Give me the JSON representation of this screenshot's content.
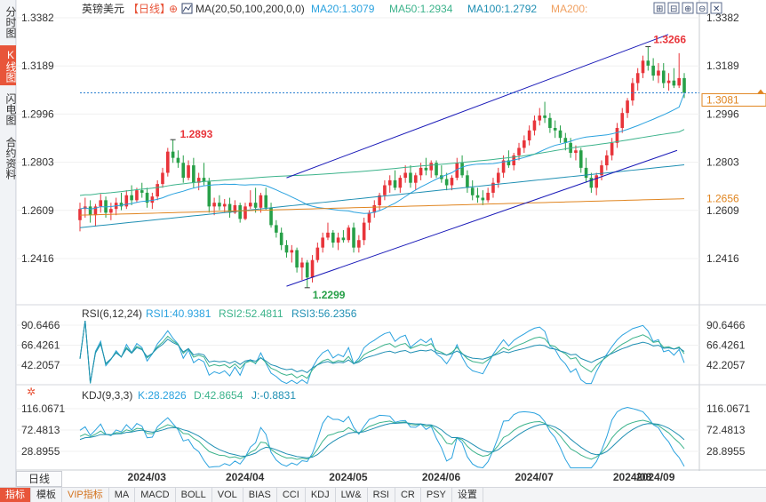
{
  "left_tabs": [
    "分时图",
    "K线图",
    "闪电图",
    "合约资料"
  ],
  "left_tab_active": 1,
  "header": {
    "symbol": "英镑美元",
    "period": "【日线】",
    "ma_label": "MA(20,50,100,200,0,0)",
    "ma20": "MA20:1.3079",
    "ma50": "MA50:1.2934",
    "ma100": "MA100:1.2792",
    "ma200": "MA200:"
  },
  "toolbar_icons": [
    "expand-icon",
    "shrink-icon",
    "zoom-in-icon",
    "zoom-out-icon",
    "close-icon"
  ],
  "price_axis": {
    "ticks": [
      "1.3382",
      "1.3189",
      "1.2996",
      "1.2803",
      "1.2609",
      "1.2416"
    ],
    "current_price": "1.3081",
    "ma200_price": "1.2656"
  },
  "annotations": {
    "high": "1.3266",
    "low": "1.2299",
    "local_high": "1.2893"
  },
  "rsi": {
    "title": "RSI(6,12,24)",
    "rsi1": "RSI1:40.9381",
    "rsi2": "RSI2:52.4811",
    "rsi3": "RSI3:56.2356",
    "ticks": [
      "90.6466",
      "66.4261",
      "42.2057"
    ]
  },
  "kdj": {
    "title": "KDJ(9,3,3)",
    "k": "K:28.2826",
    "d": "D:42.8654",
    "j": "J:-0.8831",
    "ticks": [
      "116.0671",
      "72.4813",
      "28.8955"
    ]
  },
  "x_ticks": [
    "2024/03",
    "2024/04",
    "2024/05",
    "2024/06",
    "2024/07",
    "2024/08",
    "2024/09"
  ],
  "period_button": "日线",
  "bottom_tabs": [
    "指标",
    "模板",
    "VIP指标",
    "MA",
    "MACD",
    "BOLL",
    "VOL",
    "BIAS",
    "CCI",
    "KDJ",
    "LW&",
    "RSI",
    "CR",
    "PSY",
    "设置"
  ],
  "bottom_tab_active": 0,
  "colors": {
    "up": "#e8343a",
    "down": "#27a048",
    "ma20": "#2aa2df",
    "ma50": "#3cb38b",
    "ma100": "#1f8fb3",
    "ma200": "#e08520",
    "channel": "#1a1ab8",
    "current_line": "#2a7fd0",
    "ma200_label": "#e08520"
  },
  "chart_data": {
    "type": "candlestick",
    "title": "英镑美元 【日线】",
    "x_range": [
      "2024-02",
      "2024-09"
    ],
    "y_range": [
      1.2299,
      1.3266
    ],
    "candles": [
      {
        "o": 1.257,
        "h": 1.264,
        "l": 1.2525,
        "c": 1.2615
      },
      {
        "o": 1.2615,
        "h": 1.266,
        "l": 1.258,
        "c": 1.2625
      },
      {
        "o": 1.2625,
        "h": 1.265,
        "l": 1.256,
        "c": 1.259
      },
      {
        "o": 1.259,
        "h": 1.2635,
        "l": 1.2545,
        "c": 1.2625
      },
      {
        "o": 1.2625,
        "h": 1.2675,
        "l": 1.26,
        "c": 1.265
      },
      {
        "o": 1.265,
        "h": 1.2665,
        "l": 1.258,
        "c": 1.26
      },
      {
        "o": 1.26,
        "h": 1.264,
        "l": 1.257,
        "c": 1.2615
      },
      {
        "o": 1.2615,
        "h": 1.266,
        "l": 1.259,
        "c": 1.264
      },
      {
        "o": 1.264,
        "h": 1.268,
        "l": 1.261,
        "c": 1.2625
      },
      {
        "o": 1.2625,
        "h": 1.269,
        "l": 1.2615,
        "c": 1.267
      },
      {
        "o": 1.267,
        "h": 1.271,
        "l": 1.263,
        "c": 1.265
      },
      {
        "o": 1.265,
        "h": 1.27,
        "l": 1.264,
        "c": 1.269
      },
      {
        "o": 1.269,
        "h": 1.272,
        "l": 1.266,
        "c": 1.268
      },
      {
        "o": 1.268,
        "h": 1.27,
        "l": 1.262,
        "c": 1.264
      },
      {
        "o": 1.264,
        "h": 1.268,
        "l": 1.2615,
        "c": 1.2665
      },
      {
        "o": 1.2665,
        "h": 1.273,
        "l": 1.265,
        "c": 1.2715
      },
      {
        "o": 1.2715,
        "h": 1.278,
        "l": 1.27,
        "c": 1.276
      },
      {
        "o": 1.276,
        "h": 1.286,
        "l": 1.2745,
        "c": 1.2845
      },
      {
        "o": 1.2845,
        "h": 1.2893,
        "l": 1.28,
        "c": 1.282
      },
      {
        "o": 1.282,
        "h": 1.285,
        "l": 1.278,
        "c": 1.28
      },
      {
        "o": 1.28,
        "h": 1.283,
        "l": 1.272,
        "c": 1.274
      },
      {
        "o": 1.274,
        "h": 1.281,
        "l": 1.273,
        "c": 1.279
      },
      {
        "o": 1.279,
        "h": 1.282,
        "l": 1.27,
        "c": 1.272
      },
      {
        "o": 1.272,
        "h": 1.276,
        "l": 1.269,
        "c": 1.274
      },
      {
        "o": 1.274,
        "h": 1.28,
        "l": 1.271,
        "c": 1.2725
      },
      {
        "o": 1.2725,
        "h": 1.274,
        "l": 1.26,
        "c": 1.2625
      },
      {
        "o": 1.2625,
        "h": 1.266,
        "l": 1.259,
        "c": 1.264
      },
      {
        "o": 1.264,
        "h": 1.267,
        "l": 1.261,
        "c": 1.2625
      },
      {
        "o": 1.2625,
        "h": 1.2655,
        "l": 1.26,
        "c": 1.2635
      },
      {
        "o": 1.2635,
        "h": 1.266,
        "l": 1.258,
        "c": 1.26
      },
      {
        "o": 1.26,
        "h": 1.265,
        "l": 1.2595,
        "c": 1.263
      },
      {
        "o": 1.263,
        "h": 1.264,
        "l": 1.256,
        "c": 1.2575
      },
      {
        "o": 1.2575,
        "h": 1.264,
        "l": 1.257,
        "c": 1.2625
      },
      {
        "o": 1.2625,
        "h": 1.269,
        "l": 1.2615,
        "c": 1.264
      },
      {
        "o": 1.264,
        "h": 1.27,
        "l": 1.26,
        "c": 1.262
      },
      {
        "o": 1.262,
        "h": 1.268,
        "l": 1.26,
        "c": 1.267
      },
      {
        "o": 1.267,
        "h": 1.27,
        "l": 1.261,
        "c": 1.262
      },
      {
        "o": 1.262,
        "h": 1.264,
        "l": 1.254,
        "c": 1.255
      },
      {
        "o": 1.255,
        "h": 1.257,
        "l": 1.25,
        "c": 1.252
      },
      {
        "o": 1.252,
        "h": 1.254,
        "l": 1.245,
        "c": 1.247
      },
      {
        "o": 1.247,
        "h": 1.249,
        "l": 1.242,
        "c": 1.244
      },
      {
        "o": 1.244,
        "h": 1.247,
        "l": 1.24,
        "c": 1.245
      },
      {
        "o": 1.245,
        "h": 1.246,
        "l": 1.236,
        "c": 1.238
      },
      {
        "o": 1.238,
        "h": 1.242,
        "l": 1.233,
        "c": 1.24
      },
      {
        "o": 1.24,
        "h": 1.241,
        "l": 1.2299,
        "c": 1.234
      },
      {
        "o": 1.234,
        "h": 1.243,
        "l": 1.232,
        "c": 1.241
      },
      {
        "o": 1.241,
        "h": 1.248,
        "l": 1.24,
        "c": 1.246
      },
      {
        "o": 1.246,
        "h": 1.252,
        "l": 1.244,
        "c": 1.25
      },
      {
        "o": 1.25,
        "h": 1.256,
        "l": 1.249,
        "c": 1.252
      },
      {
        "o": 1.252,
        "h": 1.253,
        "l": 1.246,
        "c": 1.248
      },
      {
        "o": 1.248,
        "h": 1.252,
        "l": 1.245,
        "c": 1.25
      },
      {
        "o": 1.25,
        "h": 1.253,
        "l": 1.248,
        "c": 1.249
      },
      {
        "o": 1.249,
        "h": 1.255,
        "l": 1.248,
        "c": 1.254
      },
      {
        "o": 1.254,
        "h": 1.256,
        "l": 1.244,
        "c": 1.246
      },
      {
        "o": 1.246,
        "h": 1.251,
        "l": 1.244,
        "c": 1.249
      },
      {
        "o": 1.249,
        "h": 1.258,
        "l": 1.247,
        "c": 1.256
      },
      {
        "o": 1.256,
        "h": 1.261,
        "l": 1.253,
        "c": 1.26
      },
      {
        "o": 1.26,
        "h": 1.265,
        "l": 1.258,
        "c": 1.263
      },
      {
        "o": 1.263,
        "h": 1.268,
        "l": 1.261,
        "c": 1.267
      },
      {
        "o": 1.267,
        "h": 1.273,
        "l": 1.265,
        "c": 1.271
      },
      {
        "o": 1.271,
        "h": 1.275,
        "l": 1.268,
        "c": 1.273
      },
      {
        "o": 1.273,
        "h": 1.277,
        "l": 1.269,
        "c": 1.27
      },
      {
        "o": 1.27,
        "h": 1.275,
        "l": 1.268,
        "c": 1.274
      },
      {
        "o": 1.274,
        "h": 1.279,
        "l": 1.272,
        "c": 1.276
      },
      {
        "o": 1.276,
        "h": 1.279,
        "l": 1.27,
        "c": 1.272
      },
      {
        "o": 1.272,
        "h": 1.276,
        "l": 1.269,
        "c": 1.275
      },
      {
        "o": 1.275,
        "h": 1.28,
        "l": 1.273,
        "c": 1.278
      },
      {
        "o": 1.278,
        "h": 1.282,
        "l": 1.275,
        "c": 1.277
      },
      {
        "o": 1.277,
        "h": 1.281,
        "l": 1.274,
        "c": 1.28
      },
      {
        "o": 1.28,
        "h": 1.281,
        "l": 1.274,
        "c": 1.275
      },
      {
        "o": 1.275,
        "h": 1.279,
        "l": 1.272,
        "c": 1.2735
      },
      {
        "o": 1.2735,
        "h": 1.276,
        "l": 1.269,
        "c": 1.271
      },
      {
        "o": 1.271,
        "h": 1.275,
        "l": 1.269,
        "c": 1.274
      },
      {
        "o": 1.274,
        "h": 1.282,
        "l": 1.273,
        "c": 1.28
      },
      {
        "o": 1.28,
        "h": 1.283,
        "l": 1.274,
        "c": 1.275
      },
      {
        "o": 1.275,
        "h": 1.277,
        "l": 1.268,
        "c": 1.27
      },
      {
        "o": 1.27,
        "h": 1.273,
        "l": 1.265,
        "c": 1.267
      },
      {
        "o": 1.267,
        "h": 1.27,
        "l": 1.264,
        "c": 1.266
      },
      {
        "o": 1.266,
        "h": 1.269,
        "l": 1.263,
        "c": 1.265
      },
      {
        "o": 1.265,
        "h": 1.27,
        "l": 1.264,
        "c": 1.268
      },
      {
        "o": 1.268,
        "h": 1.274,
        "l": 1.266,
        "c": 1.272
      },
      {
        "o": 1.272,
        "h": 1.278,
        "l": 1.27,
        "c": 1.276
      },
      {
        "o": 1.276,
        "h": 1.283,
        "l": 1.274,
        "c": 1.281
      },
      {
        "o": 1.281,
        "h": 1.285,
        "l": 1.278,
        "c": 1.279
      },
      {
        "o": 1.279,
        "h": 1.284,
        "l": 1.277,
        "c": 1.283
      },
      {
        "o": 1.283,
        "h": 1.288,
        "l": 1.281,
        "c": 1.286
      },
      {
        "o": 1.286,
        "h": 1.291,
        "l": 1.284,
        "c": 1.289
      },
      {
        "o": 1.289,
        "h": 1.295,
        "l": 1.287,
        "c": 1.293
      },
      {
        "o": 1.293,
        "h": 1.299,
        "l": 1.291,
        "c": 1.297
      },
      {
        "o": 1.297,
        "h": 1.302,
        "l": 1.295,
        "c": 1.299
      },
      {
        "o": 1.299,
        "h": 1.3045,
        "l": 1.296,
        "c": 1.298
      },
      {
        "o": 1.298,
        "h": 1.3,
        "l": 1.292,
        "c": 1.294
      },
      {
        "o": 1.294,
        "h": 1.297,
        "l": 1.29,
        "c": 1.293
      },
      {
        "o": 1.293,
        "h": 1.295,
        "l": 1.288,
        "c": 1.29
      },
      {
        "o": 1.29,
        "h": 1.292,
        "l": 1.285,
        "c": 1.288
      },
      {
        "o": 1.288,
        "h": 1.29,
        "l": 1.282,
        "c": 1.284
      },
      {
        "o": 1.284,
        "h": 1.287,
        "l": 1.281,
        "c": 1.285
      },
      {
        "o": 1.285,
        "h": 1.286,
        "l": 1.276,
        "c": 1.278
      },
      {
        "o": 1.278,
        "h": 1.282,
        "l": 1.272,
        "c": 1.274
      },
      {
        "o": 1.274,
        "h": 1.276,
        "l": 1.268,
        "c": 1.27
      },
      {
        "o": 1.27,
        "h": 1.276,
        "l": 1.267,
        "c": 1.275
      },
      {
        "o": 1.275,
        "h": 1.281,
        "l": 1.273,
        "c": 1.279
      },
      {
        "o": 1.279,
        "h": 1.285,
        "l": 1.277,
        "c": 1.283
      },
      {
        "o": 1.283,
        "h": 1.29,
        "l": 1.281,
        "c": 1.288
      },
      {
        "o": 1.288,
        "h": 1.296,
        "l": 1.286,
        "c": 1.294
      },
      {
        "o": 1.294,
        "h": 1.302,
        "l": 1.292,
        "c": 1.3
      },
      {
        "o": 1.3,
        "h": 1.306,
        "l": 1.298,
        "c": 1.305
      },
      {
        "o": 1.305,
        "h": 1.314,
        "l": 1.303,
        "c": 1.312
      },
      {
        "o": 1.312,
        "h": 1.318,
        "l": 1.309,
        "c": 1.316
      },
      {
        "o": 1.316,
        "h": 1.323,
        "l": 1.314,
        "c": 1.321
      },
      {
        "o": 1.321,
        "h": 1.3266,
        "l": 1.317,
        "c": 1.319
      },
      {
        "o": 1.319,
        "h": 1.322,
        "l": 1.313,
        "c": 1.315
      },
      {
        "o": 1.315,
        "h": 1.32,
        "l": 1.312,
        "c": 1.317
      },
      {
        "o": 1.317,
        "h": 1.32,
        "l": 1.31,
        "c": 1.312
      },
      {
        "o": 1.312,
        "h": 1.316,
        "l": 1.309,
        "c": 1.313
      },
      {
        "o": 1.313,
        "h": 1.318,
        "l": 1.31,
        "c": 1.311
      },
      {
        "o": 1.311,
        "h": 1.324,
        "l": 1.31,
        "c": 1.314
      },
      {
        "o": 1.314,
        "h": 1.316,
        "l": 1.306,
        "c": 1.3081
      }
    ],
    "ma20_end": 1.3079,
    "ma50_end": 1.2934,
    "ma100_end": 1.2792,
    "ma200_end": 1.2656
  }
}
